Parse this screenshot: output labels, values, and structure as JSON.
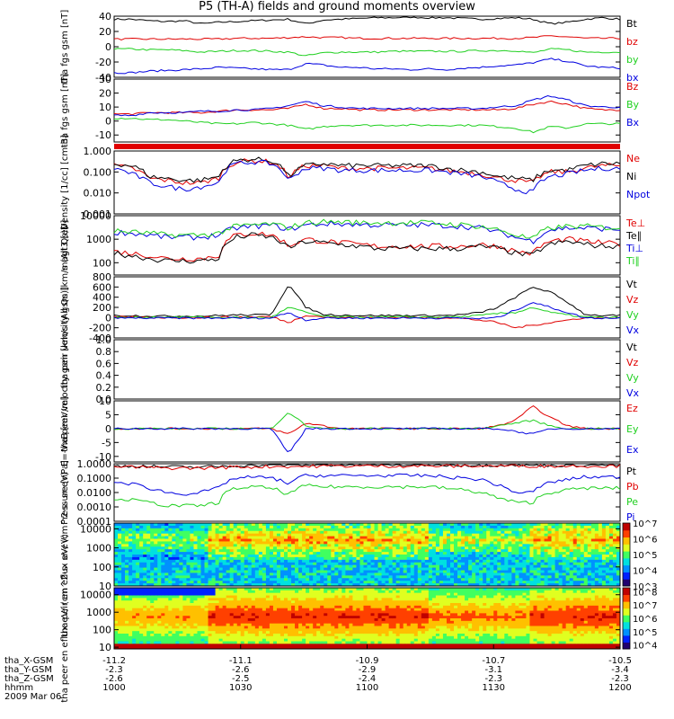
{
  "title": "P5 (TH-A) fields and ground moments overview",
  "colors": {
    "black": "#000000",
    "red": "#e00000",
    "green": "#20d020",
    "blue": "#0000e0"
  },
  "ephemeris": {
    "rows": [
      {
        "label": "tha_X-GSM",
        "values": [
          "-11.2",
          "-11.1",
          "-10.9",
          "-10.7",
          "-10.5"
        ]
      },
      {
        "label": "tha_Y-GSM",
        "values": [
          "-2.3",
          "-2.6",
          "-2.9",
          "-3.1",
          "-3.4"
        ]
      },
      {
        "label": "tha_Z-GSM",
        "values": [
          "-2.6",
          "-2.5",
          "-2.4",
          "-2.3",
          "-2.3"
        ]
      },
      {
        "label": "hhmm",
        "values": [
          "1000",
          "1030",
          "1100",
          "1130",
          "1200"
        ]
      }
    ],
    "date": "2009 Mar 06"
  },
  "chart_data": [
    {
      "type": "line",
      "ylabel": "tha fgs gsm [nT]",
      "yticks": [
        "40",
        "20",
        "0",
        "-20",
        "-40"
      ],
      "ylim": [
        -40,
        40
      ],
      "series": [
        {
          "name": "Bt",
          "color": "black",
          "values": [
            36,
            36,
            34,
            33,
            34,
            30,
            32,
            33,
            34,
            35,
            36,
            30,
            35,
            36,
            37,
            38,
            38,
            39,
            38,
            38,
            37,
            36,
            37,
            38,
            36,
            30,
            32,
            36,
            38,
            36
          ]
        },
        {
          "name": "bz",
          "color": "red",
          "values": [
            10,
            10,
            10,
            10,
            10,
            10,
            10,
            11,
            11,
            11,
            12,
            13,
            12,
            12,
            11,
            11,
            11,
            11,
            11,
            11,
            11,
            11,
            11,
            11,
            12,
            14,
            13,
            11,
            11,
            11
          ]
        },
        {
          "name": "by",
          "color": "green",
          "values": [
            -3,
            -3,
            -4,
            -4,
            -5,
            -7,
            -6,
            -5,
            -5,
            -6,
            -7,
            -12,
            -8,
            -7,
            -7,
            -7,
            -6,
            -6,
            -6,
            -6,
            -6,
            -5,
            -5,
            -5,
            -8,
            -3,
            -4,
            -7,
            -7,
            -7
          ]
        },
        {
          "name": "bx",
          "color": "blue",
          "values": [
            -34,
            -34,
            -32,
            -31,
            -30,
            -29,
            -27,
            -28,
            -29,
            -30,
            -30,
            -22,
            -24,
            -27,
            -27,
            -29,
            -29,
            -30,
            -29,
            -30,
            -28,
            -27,
            -25,
            -24,
            -21,
            -16,
            -19,
            -25,
            -27,
            -28
          ]
        }
      ]
    },
    {
      "type": "line",
      "ylabel": "tha fgs gsm [nT]",
      "yticks": [
        "30",
        "20",
        "10",
        "0",
        "-10"
      ],
      "ylim": [
        -15,
        30
      ],
      "series": [
        {
          "name": "Bz",
          "color": "red",
          "values": [
            5,
            5,
            6,
            6,
            6,
            6,
            7,
            8,
            8,
            8,
            9,
            12,
            9,
            9,
            8,
            8,
            8,
            8,
            8,
            8,
            8,
            8,
            8,
            9,
            12,
            14,
            12,
            9,
            8,
            8
          ]
        },
        {
          "name": "By",
          "color": "green",
          "values": [
            2,
            2,
            1,
            1,
            0,
            -1,
            -2,
            -2,
            -1,
            -2,
            -3,
            -6,
            -4,
            -3,
            -3,
            -3,
            -3,
            -3,
            -3,
            -3,
            -3,
            -3,
            -4,
            -5,
            -8,
            -4,
            -5,
            -2,
            -2,
            -2
          ]
        },
        {
          "name": "Bx",
          "color": "blue",
          "values": [
            4,
            4,
            6,
            6,
            6,
            7,
            7,
            8,
            8,
            9,
            11,
            14,
            11,
            10,
            9,
            9,
            9,
            9,
            9,
            9,
            9,
            9,
            10,
            11,
            15,
            18,
            15,
            11,
            10,
            10
          ]
        }
      ]
    },
    {
      "type": "line",
      "ylabel": "Density [1/cc] [cm-3]",
      "yticks": [
        "1.000",
        "0.100",
        "0.010",
        "0.001"
      ],
      "ylim": [
        0.001,
        1
      ],
      "log": true,
      "series": [
        {
          "name": "Ne",
          "color": "red",
          "values": [
            0.2,
            0.15,
            0.05,
            0.04,
            0.03,
            0.03,
            0.05,
            0.3,
            0.35,
            0.3,
            0.05,
            0.2,
            0.2,
            0.15,
            0.15,
            0.15,
            0.15,
            0.15,
            0.15,
            0.12,
            0.1,
            0.08,
            0.05,
            0.04,
            0.03,
            0.1,
            0.1,
            0.15,
            0.2,
            0.2
          ]
        },
        {
          "name": "Ni",
          "color": "black",
          "values": [
            0.25,
            0.2,
            0.06,
            0.05,
            0.04,
            0.04,
            0.06,
            0.35,
            0.4,
            0.35,
            0.05,
            0.2,
            0.25,
            0.2,
            0.2,
            0.2,
            0.2,
            0.2,
            0.2,
            0.15,
            0.12,
            0.1,
            0.06,
            0.05,
            0.04,
            0.12,
            0.12,
            0.2,
            0.25,
            0.25
          ]
        },
        {
          "name": "Npot",
          "color": "blue",
          "values": [
            0.15,
            0.08,
            0.03,
            0.02,
            0.015,
            0.02,
            0.03,
            0.25,
            0.3,
            0.25,
            0.03,
            0.15,
            0.15,
            0.12,
            0.12,
            0.12,
            0.12,
            0.12,
            0.12,
            0.1,
            0.08,
            0.06,
            0.03,
            0.015,
            0.01,
            0.06,
            0.08,
            0.12,
            0.15,
            0.15
          ]
        }
      ]
    },
    {
      "type": "line",
      "ylabel": "magt3 [eV]",
      "yticks": [
        "10000",
        "1000",
        "100"
      ],
      "ylim": [
        30,
        10000
      ],
      "log": true,
      "series": [
        {
          "name": "Te⊥",
          "color": "red",
          "values": [
            300,
            250,
            200,
            150,
            150,
            150,
            200,
            1500,
            1800,
            1500,
            500,
            1000,
            800,
            700,
            600,
            500,
            500,
            500,
            500,
            500,
            500,
            600,
            500,
            300,
            250,
            800,
            1000,
            800,
            700,
            600
          ]
        },
        {
          "name": "Te∥",
          "color": "black",
          "values": [
            250,
            200,
            150,
            120,
            120,
            120,
            150,
            1200,
            1500,
            1200,
            400,
            800,
            700,
            600,
            500,
            400,
            400,
            400,
            400,
            400,
            400,
            500,
            400,
            250,
            200,
            600,
            800,
            600,
            500,
            500
          ]
        },
        {
          "name": "Ti⊥",
          "color": "blue",
          "values": [
            2000,
            1800,
            1500,
            1200,
            1200,
            1200,
            1500,
            3000,
            3500,
            4000,
            2500,
            4000,
            4500,
            4500,
            4200,
            4000,
            4000,
            4000,
            4000,
            3800,
            3500,
            3000,
            2000,
            1200,
            800,
            2500,
            3000,
            3000,
            2800,
            2500
          ]
        },
        {
          "name": "Ti∥",
          "color": "green",
          "values": [
            2200,
            2000,
            1800,
            1500,
            1500,
            1500,
            1800,
            3500,
            4000,
            4500,
            3000,
            5000,
            5500,
            5500,
            5000,
            5000,
            5000,
            5000,
            5000,
            4500,
            4000,
            3500,
            2500,
            1500,
            1000,
            3000,
            3500,
            3500,
            3200,
            3000
          ]
        }
      ]
    },
    {
      "type": "line",
      "ylabel": "tha peir velocity gsm [km/s (All Qs)]",
      "yticks": [
        "800",
        "600",
        "400",
        "200",
        "0",
        "-200",
        "-400"
      ],
      "ylim": [
        -400,
        800
      ],
      "series": [
        {
          "name": "Vt",
          "color": "black",
          "values": [
            40,
            40,
            30,
            30,
            30,
            30,
            40,
            50,
            50,
            60,
            650,
            200,
            60,
            50,
            40,
            40,
            40,
            40,
            40,
            40,
            60,
            100,
            200,
            400,
            600,
            500,
            300,
            60,
            40,
            40
          ]
        },
        {
          "name": "Vz",
          "color": "red",
          "values": [
            10,
            10,
            0,
            0,
            0,
            0,
            10,
            10,
            10,
            20,
            -100,
            50,
            10,
            0,
            0,
            0,
            0,
            0,
            0,
            0,
            -20,
            -50,
            -100,
            -200,
            -150,
            -100,
            -50,
            0,
            0,
            0
          ]
        },
        {
          "name": "Vy",
          "color": "green",
          "values": [
            0,
            0,
            10,
            10,
            10,
            10,
            0,
            0,
            0,
            0,
            200,
            100,
            20,
            10,
            10,
            10,
            10,
            10,
            10,
            10,
            20,
            40,
            80,
            100,
            200,
            100,
            50,
            10,
            0,
            0
          ]
        },
        {
          "name": "Vx",
          "color": "blue",
          "values": [
            -10,
            -10,
            -10,
            -10,
            -10,
            -10,
            -10,
            -10,
            -10,
            -10,
            100,
            -50,
            -10,
            -10,
            -10,
            -10,
            -10,
            -10,
            -10,
            -10,
            -10,
            -20,
            0,
            150,
            300,
            200,
            100,
            -10,
            -10,
            -10
          ]
        }
      ]
    },
    {
      "type": "line",
      "ylabel": "tha peer velocity gsm [km/s (All Qs)]",
      "yticks": [
        "1.0",
        "0.8",
        "0.6",
        "0.4",
        "0.2",
        "0.0"
      ],
      "ylim": [
        0,
        1
      ],
      "series": [
        {
          "name": "Vt",
          "color": "black",
          "values": []
        },
        {
          "name": "Vz",
          "color": "red",
          "values": []
        },
        {
          "name": "Vy",
          "color": "green",
          "values": []
        },
        {
          "name": "Vx",
          "color": "blue",
          "values": []
        }
      ]
    },
    {
      "type": "line",
      "ylabel": "E=-VxB [mV/m]",
      "yticks": [
        "10",
        "5",
        "0",
        "-5",
        "-10"
      ],
      "ylim": [
        -12,
        10
      ],
      "series": [
        {
          "name": "Ez",
          "color": "red",
          "values": [
            0,
            0,
            0,
            0,
            0,
            0,
            0,
            0,
            0,
            0,
            -2,
            2,
            1,
            0,
            0,
            0,
            0,
            0,
            0,
            0,
            0,
            0,
            1,
            3,
            8,
            4,
            1,
            0,
            0,
            0
          ]
        },
        {
          "name": "Ey",
          "color": "green",
          "values": [
            0,
            0,
            0,
            0,
            0,
            0,
            0,
            0,
            0,
            0,
            6,
            1,
            0,
            0,
            0,
            0,
            0,
            0,
            0,
            0,
            0,
            0,
            1,
            2,
            3,
            1,
            0,
            0,
            0,
            0
          ]
        },
        {
          "name": "Ex",
          "color": "blue",
          "values": [
            0,
            0,
            0,
            0,
            0,
            0,
            0,
            0,
            0,
            0,
            -9,
            0,
            0,
            0,
            0,
            0,
            0,
            0,
            0,
            0,
            0,
            0,
            0,
            -1,
            -2,
            0,
            0,
            0,
            0,
            0
          ]
        }
      ]
    },
    {
      "type": "line",
      "ylabel": "Pressure [nPa]",
      "yticks": [
        "1.0000",
        "0.1000",
        "0.0100",
        "0.0010",
        "0.0001"
      ],
      "ylim": [
        0.0001,
        1
      ],
      "log": true,
      "series": [
        {
          "name": "Pt",
          "color": "black",
          "values": [
            0.7,
            0.7,
            0.65,
            0.6,
            0.6,
            0.6,
            0.65,
            0.75,
            0.8,
            0.8,
            0.85,
            0.85,
            0.85,
            0.85,
            0.85,
            0.85,
            0.85,
            0.85,
            0.85,
            0.85,
            0.85,
            0.8,
            0.85,
            0.85,
            0.8,
            0.8,
            0.8,
            0.85,
            0.85,
            0.85
          ]
        },
        {
          "name": "Pb",
          "color": "red",
          "values": [
            0.6,
            0.6,
            0.55,
            0.5,
            0.5,
            0.5,
            0.55,
            0.6,
            0.6,
            0.65,
            0.65,
            0.65,
            0.7,
            0.7,
            0.7,
            0.7,
            0.7,
            0.7,
            0.7,
            0.7,
            0.7,
            0.7,
            0.7,
            0.75,
            0.7,
            0.7,
            0.7,
            0.7,
            0.7,
            0.7
          ]
        },
        {
          "name": "Pe",
          "color": "green",
          "values": [
            0.004,
            0.003,
            0.002,
            0.0012,
            0.0012,
            0.0012,
            0.002,
            0.02,
            0.025,
            0.02,
            0.006,
            0.03,
            0.025,
            0.025,
            0.025,
            0.025,
            0.025,
            0.025,
            0.025,
            0.02,
            0.015,
            0.01,
            0.004,
            0.002,
            0.002,
            0.01,
            0.015,
            0.02,
            0.02,
            0.02
          ]
        },
        {
          "name": "Pi",
          "color": "blue",
          "values": [
            0.05,
            0.04,
            0.02,
            0.01,
            0.008,
            0.01,
            0.02,
            0.1,
            0.12,
            0.1,
            0.04,
            0.15,
            0.15,
            0.15,
            0.15,
            0.15,
            0.15,
            0.15,
            0.15,
            0.12,
            0.1,
            0.08,
            0.03,
            0.01,
            0.01,
            0.05,
            0.08,
            0.12,
            0.12,
            0.12
          ]
        }
      ]
    },
    {
      "type": "heatmap",
      "ylabel": "tha peir en eflux eV/ (cm^2-s- sr-eV)",
      "yticks": [
        "10000",
        "1000",
        "100",
        "10"
      ],
      "ylim": [
        10,
        20000
      ],
      "log": true,
      "colorbar": {
        "ticks": [
          "10^7",
          "10^6",
          "10^5",
          "10^4",
          "10^3"
        ],
        "range": [
          1000,
          10000000
        ]
      }
    },
    {
      "type": "heatmap",
      "ylabel": "tha peer en eflux eV/ (cm^2-s- sr-eV)",
      "yticks": [
        "10000",
        "1000",
        "100",
        "10"
      ],
      "ylim": [
        8,
        25000
      ],
      "log": true,
      "colorbar": {
        "ticks": [
          "10^8",
          "10^7",
          "10^6",
          "10^5",
          "10^4"
        ],
        "range": [
          5000,
          200000000
        ]
      }
    }
  ]
}
